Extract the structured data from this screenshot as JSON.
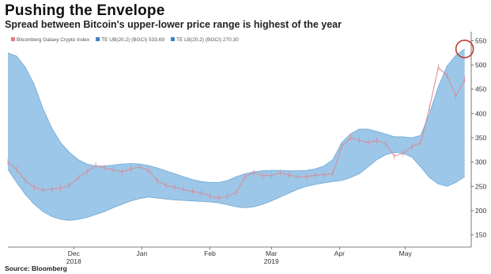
{
  "header": {
    "title": "Pushing the Envelope",
    "subtitle": "Spread between Bitcoin's upper-lower price range is highest of the year"
  },
  "footer": {
    "source": "Source: Bloomberg"
  },
  "colors": {
    "band_fill": "#9cc7e8",
    "band_edge": "#6fa8d6",
    "price_line": "#d98a94",
    "legend_price": "#e07b86",
    "legend_band": "#3b82c4",
    "highlight_circle": "#c0392b",
    "axis": "#555555",
    "grid": "#cccccc"
  },
  "chart_data": {
    "type": "area",
    "title": "Pushing the Envelope",
    "subtitle": "Spread between Bitcoin's upper-lower price range is highest of the year",
    "legend": [
      {
        "label": "Bloomberg Galaxy Crypto Index",
        "swatch": "price"
      },
      {
        "label": "TE UB(20,2) (BGCI) 533.69",
        "swatch": "band"
      },
      {
        "label": "TE LB(20,2) (BGCI) 270.30",
        "swatch": "band"
      }
    ],
    "legend_placement": "top-left",
    "x_axis": {
      "type": "time",
      "start": "2018-11-01",
      "end": "2019-05-31",
      "ticks": [
        {
          "date": "2018-12-01",
          "label": "Dec",
          "sublabel": "2018"
        },
        {
          "date": "2019-01-01",
          "label": "Jan"
        },
        {
          "date": "2019-02-01",
          "label": "Feb"
        },
        {
          "date": "2019-03-01",
          "label": "Mar",
          "sublabel": "2019"
        },
        {
          "date": "2019-04-01",
          "label": "Apr"
        },
        {
          "date": "2019-05-01",
          "label": "May"
        }
      ]
    },
    "y_axis": {
      "position": "right",
      "ylim": [
        125,
        562
      ],
      "ticks": [
        150,
        200,
        250,
        300,
        350,
        400,
        450,
        500,
        550
      ]
    },
    "grid": false,
    "highlight": {
      "date": "2019-05-28",
      "value": 533,
      "shape": "circle"
    },
    "series": [
      {
        "name": "TE UB(20,2) (BGCI)",
        "role": "upper_band",
        "x": [
          "2018-11-01",
          "2018-11-05",
          "2018-11-09",
          "2018-11-13",
          "2018-11-17",
          "2018-11-21",
          "2018-11-25",
          "2018-11-29",
          "2018-12-03",
          "2018-12-07",
          "2018-12-11",
          "2018-12-15",
          "2018-12-19",
          "2018-12-23",
          "2018-12-27",
          "2018-12-31",
          "2019-01-04",
          "2019-01-08",
          "2019-01-12",
          "2019-01-16",
          "2019-01-20",
          "2019-01-24",
          "2019-01-28",
          "2019-02-01",
          "2019-02-05",
          "2019-02-09",
          "2019-02-13",
          "2019-02-17",
          "2019-02-21",
          "2019-02-25",
          "2019-03-01",
          "2019-03-05",
          "2019-03-09",
          "2019-03-13",
          "2019-03-17",
          "2019-03-21",
          "2019-03-25",
          "2019-03-29",
          "2019-04-02",
          "2019-04-06",
          "2019-04-10",
          "2019-04-14",
          "2019-04-18",
          "2019-04-22",
          "2019-04-26",
          "2019-04-30",
          "2019-05-04",
          "2019-05-08",
          "2019-05-12",
          "2019-05-16",
          "2019-05-20",
          "2019-05-24",
          "2019-05-28"
        ],
        "values": [
          525,
          518,
          495,
          460,
          410,
          370,
          340,
          320,
          305,
          296,
          292,
          292,
          294,
          296,
          297,
          296,
          293,
          288,
          282,
          276,
          270,
          264,
          260,
          258,
          258,
          262,
          270,
          276,
          280,
          282,
          283,
          283,
          282,
          282,
          283,
          286,
          292,
          305,
          340,
          358,
          368,
          368,
          363,
          358,
          352,
          352,
          350,
          355,
          400,
          455,
          498,
          520,
          533
        ]
      },
      {
        "name": "TE LB(20,2) (BGCI)",
        "role": "lower_band",
        "x": [
          "2018-11-01",
          "2018-11-05",
          "2018-11-09",
          "2018-11-13",
          "2018-11-17",
          "2018-11-21",
          "2018-11-25",
          "2018-11-29",
          "2018-12-03",
          "2018-12-07",
          "2018-12-11",
          "2018-12-15",
          "2018-12-19",
          "2018-12-23",
          "2018-12-27",
          "2018-12-31",
          "2019-01-04",
          "2019-01-08",
          "2019-01-12",
          "2019-01-16",
          "2019-01-20",
          "2019-01-24",
          "2019-01-28",
          "2019-02-01",
          "2019-02-05",
          "2019-02-09",
          "2019-02-13",
          "2019-02-17",
          "2019-02-21",
          "2019-02-25",
          "2019-03-01",
          "2019-03-05",
          "2019-03-09",
          "2019-03-13",
          "2019-03-17",
          "2019-03-21",
          "2019-03-25",
          "2019-03-29",
          "2019-04-02",
          "2019-04-06",
          "2019-04-10",
          "2019-04-14",
          "2019-04-18",
          "2019-04-22",
          "2019-04-26",
          "2019-04-30",
          "2019-05-04",
          "2019-05-08",
          "2019-05-12",
          "2019-05-16",
          "2019-05-20",
          "2019-05-24",
          "2019-05-28"
        ],
        "values": [
          285,
          258,
          233,
          213,
          198,
          188,
          182,
          180,
          182,
          186,
          192,
          198,
          206,
          213,
          220,
          225,
          228,
          226,
          224,
          222,
          221,
          220,
          219,
          218,
          216,
          212,
          208,
          206,
          208,
          213,
          220,
          228,
          236,
          244,
          250,
          254,
          257,
          260,
          262,
          268,
          276,
          290,
          305,
          315,
          320,
          318,
          310,
          290,
          268,
          255,
          250,
          258,
          270
        ]
      },
      {
        "name": "Bloomberg Galaxy Crypto Index",
        "role": "price",
        "x": [
          "2018-11-01",
          "2018-11-05",
          "2018-11-09",
          "2018-11-13",
          "2018-11-17",
          "2018-11-21",
          "2018-11-25",
          "2018-11-29",
          "2018-12-03",
          "2018-12-07",
          "2018-12-11",
          "2018-12-15",
          "2018-12-19",
          "2018-12-23",
          "2018-12-27",
          "2018-12-31",
          "2019-01-04",
          "2019-01-08",
          "2019-01-12",
          "2019-01-16",
          "2019-01-20",
          "2019-01-24",
          "2019-01-28",
          "2019-02-01",
          "2019-02-05",
          "2019-02-09",
          "2019-02-13",
          "2019-02-17",
          "2019-02-21",
          "2019-02-25",
          "2019-03-01",
          "2019-03-05",
          "2019-03-09",
          "2019-03-13",
          "2019-03-17",
          "2019-03-21",
          "2019-03-25",
          "2019-03-29",
          "2019-04-02",
          "2019-04-06",
          "2019-04-10",
          "2019-04-14",
          "2019-04-18",
          "2019-04-22",
          "2019-04-26",
          "2019-04-30",
          "2019-05-04",
          "2019-05-08",
          "2019-05-12",
          "2019-05-16",
          "2019-05-20",
          "2019-05-24",
          "2019-05-28"
        ],
        "values": [
          300,
          285,
          262,
          248,
          242,
          244,
          246,
          252,
          268,
          280,
          293,
          288,
          284,
          280,
          286,
          290,
          283,
          262,
          252,
          248,
          243,
          240,
          236,
          230,
          226,
          230,
          237,
          270,
          278,
          272,
          272,
          278,
          273,
          270,
          270,
          273,
          274,
          276,
          332,
          350,
          345,
          340,
          344,
          338,
          312,
          318,
          332,
          340,
          412,
          495,
          478,
          436,
          470
        ]
      }
    ]
  }
}
